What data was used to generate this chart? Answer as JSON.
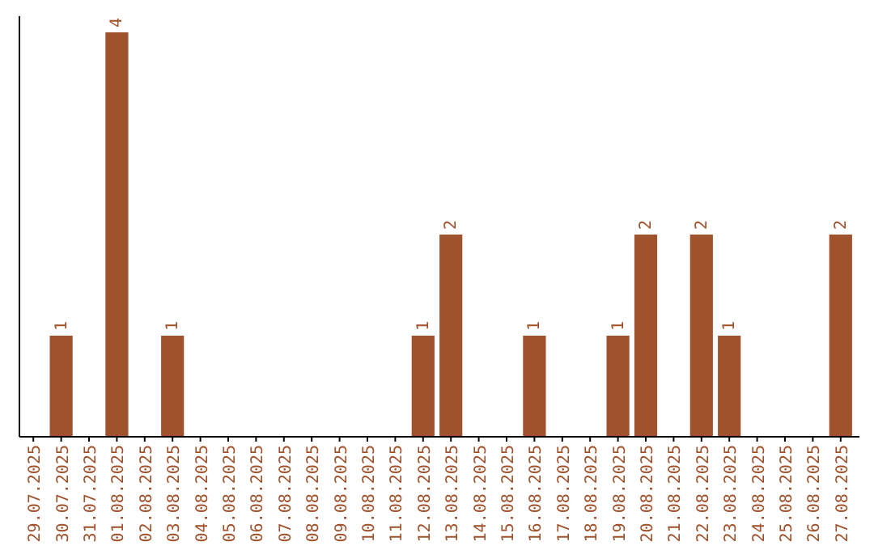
{
  "chart_data": {
    "type": "bar",
    "categories": [
      "29.07.2025",
      "30.07.2025",
      "31.07.2025",
      "01.08.2025",
      "02.08.2025",
      "03.08.2025",
      "04.08.2025",
      "05.08.2025",
      "06.08.2025",
      "07.08.2025",
      "08.08.2025",
      "09.08.2025",
      "10.08.2025",
      "11.08.2025",
      "12.08.2025",
      "13.08.2025",
      "14.08.2025",
      "15.08.2025",
      "16.08.2025",
      "17.08.2025",
      "18.08.2025",
      "19.08.2025",
      "20.08.2025",
      "21.08.2025",
      "22.08.2025",
      "23.08.2025",
      "24.08.2025",
      "25.08.2025",
      "26.08.2025",
      "27.08.2025"
    ],
    "values": [
      0,
      1,
      0,
      4,
      0,
      1,
      0,
      0,
      0,
      0,
      0,
      0,
      0,
      0,
      1,
      2,
      0,
      0,
      1,
      0,
      0,
      1,
      2,
      0,
      2,
      1,
      0,
      0,
      0,
      2
    ],
    "value_labels": [
      null,
      "1",
      null,
      "4",
      null,
      "1",
      null,
      null,
      null,
      null,
      null,
      null,
      null,
      null,
      "1",
      "2",
      null,
      null,
      "1",
      null,
      null,
      "1",
      "2",
      null,
      "2",
      "1",
      null,
      null,
      null,
      "2"
    ],
    "color": "#a0522d"
  }
}
